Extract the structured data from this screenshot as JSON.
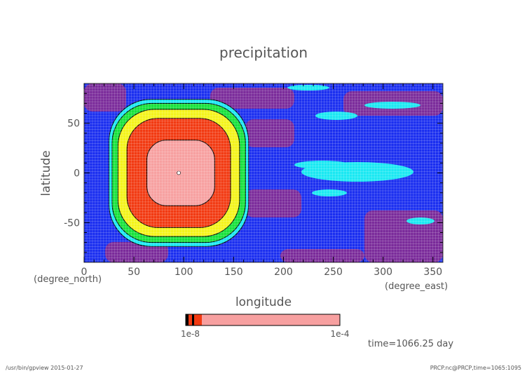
{
  "chart_data": {
    "type": "heatmap",
    "title": "precipitation",
    "xlabel": "longitude",
    "ylabel": "latitude",
    "x_unit": "(degree_east)",
    "y_unit": "(degree_north)",
    "xlim": [
      0,
      360
    ],
    "ylim": [
      -90,
      90
    ],
    "xticks": [
      "0",
      "50",
      "100",
      "150",
      "200",
      "250",
      "300",
      "350"
    ],
    "yticks": [
      "-50",
      "0",
      "50"
    ],
    "xtick_values": [
      0,
      50,
      100,
      150,
      200,
      250,
      300,
      350
    ],
    "ytick_values": [
      -50,
      0,
      50
    ],
    "grid": true,
    "colorbar": {
      "min_label": "1e-8",
      "max_label": "1e-4",
      "colors": [
        "#7a2a9a",
        "#1a2ef0",
        "#19e8f2",
        "#16e23a",
        "#f4f41a",
        "#f23a12",
        "#f7a0a0"
      ]
    },
    "features": [
      {
        "name": "peak",
        "center": [
          97,
          0
        ],
        "half_width": [
          34,
          33
        ],
        "color": "#f7a0a0"
      },
      {
        "name": "high",
        "center": [
          95,
          0
        ],
        "half_width": [
          52,
          55
        ],
        "color": "#f23a12"
      },
      {
        "name": "upper-mid",
        "center": [
          95,
          0
        ],
        "half_width": [
          61,
          64
        ],
        "color": "#f4f41a"
      },
      {
        "name": "mid",
        "center": [
          95,
          0
        ],
        "half_width": [
          67,
          70
        ],
        "color": "#16e23a"
      },
      {
        "name": "low-mid",
        "center": [
          95,
          0
        ],
        "half_width": [
          70,
          74
        ],
        "color": "#19e8f2"
      }
    ],
    "time_label": "time=1066.25 day"
  },
  "footer": {
    "left": "/usr/bin/gpview  2015-01-27",
    "right": "PRCP.nc@PRCP,time=1065:1095"
  },
  "colors": {
    "text": "#555555",
    "background_field": "#1a2ef0",
    "low_field": "#7a2a9a",
    "accent_field": "#19e8f2"
  }
}
